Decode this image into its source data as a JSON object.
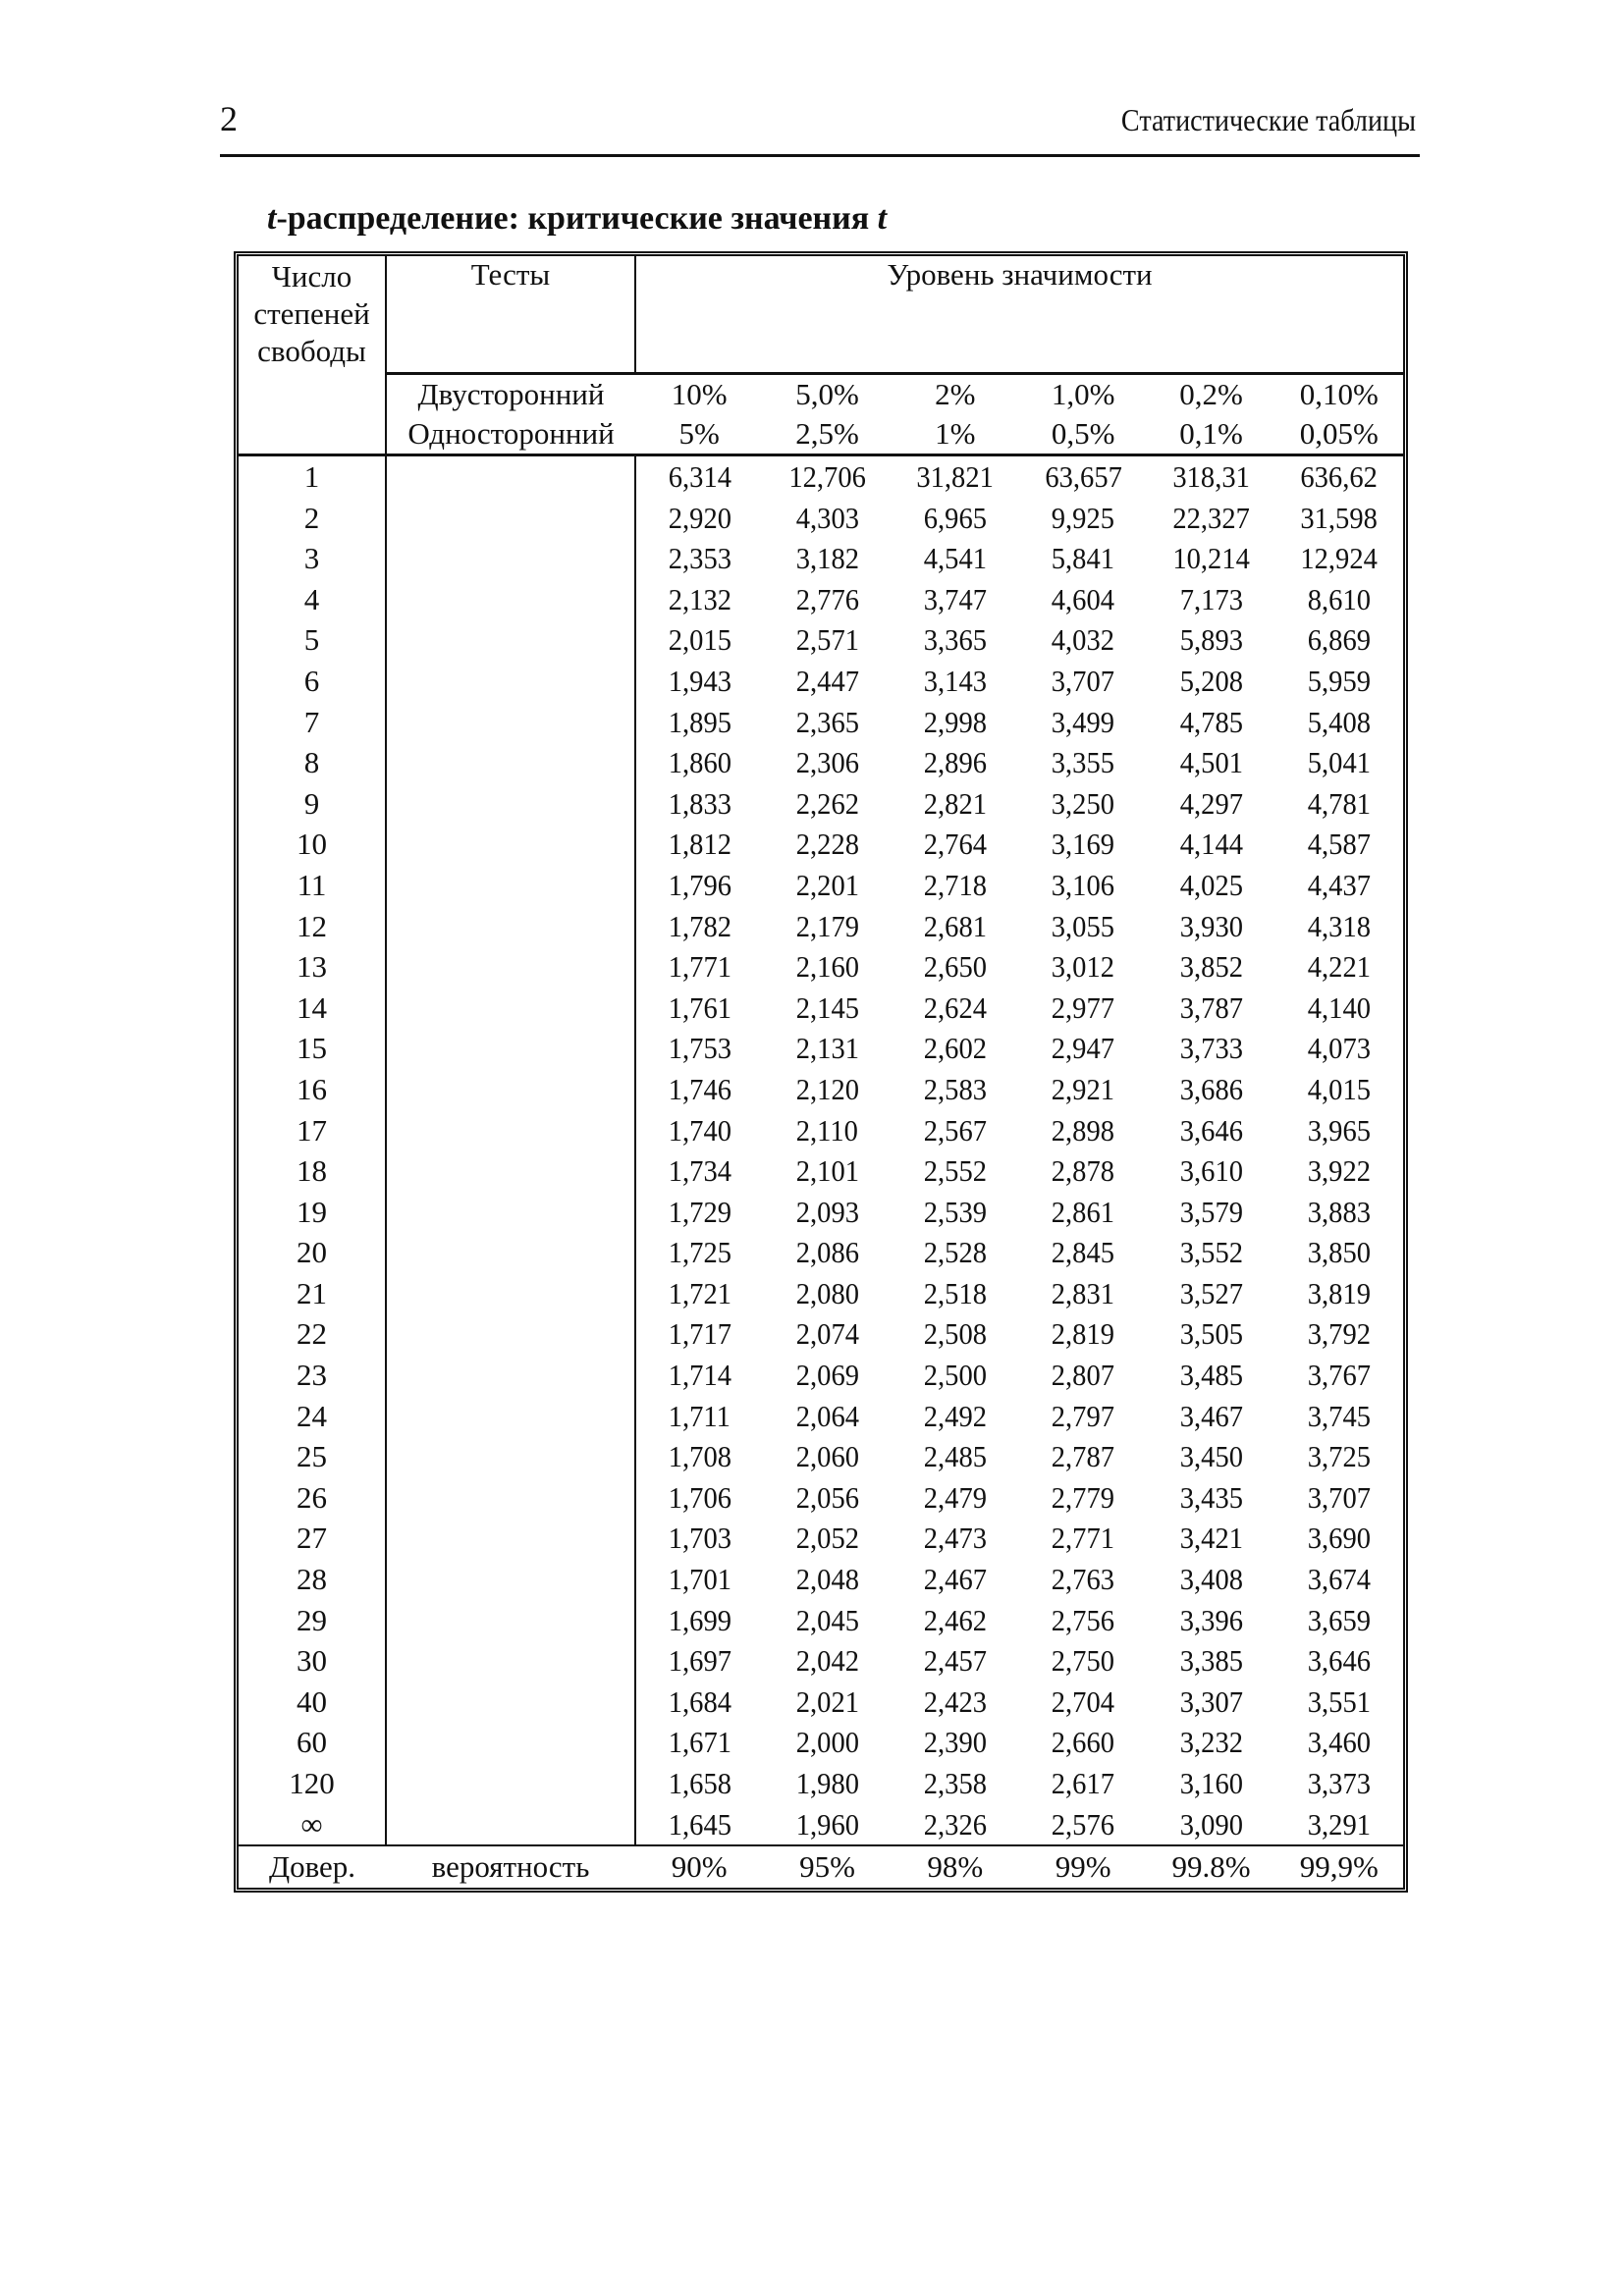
{
  "header": {
    "page_number": "2",
    "running_title": "Статистические таблицы"
  },
  "title": {
    "italic_t": "t",
    "text": "-распределение: критические значения ",
    "italic_t_end": "t"
  },
  "table": {
    "col_df": [
      "Число",
      "степеней",
      "свободы"
    ],
    "col_tests": "Тесты",
    "col_level": "Уровень значимости",
    "two_sided_label": "Двусторонний",
    "two_sided": [
      "10%",
      "5,0%",
      "2%",
      "1,0%",
      "0,2%",
      "0,10%"
    ],
    "one_sided_label": "Односторонний",
    "one_sided": [
      "5%",
      "2,5%",
      "1%",
      "0,5%",
      "0,1%",
      "0,05%"
    ],
    "rows": [
      {
        "df": "1",
        "v": [
          "6,314",
          "12,706",
          "31,821",
          "63,657",
          "318,31",
          "636,62"
        ]
      },
      {
        "df": "2",
        "v": [
          "2,920",
          "4,303",
          "6,965",
          "9,925",
          "22,327",
          "31,598"
        ]
      },
      {
        "df": "3",
        "v": [
          "2,353",
          "3,182",
          "4,541",
          "5,841",
          "10,214",
          "12,924"
        ]
      },
      {
        "df": "4",
        "v": [
          "2,132",
          "2,776",
          "3,747",
          "4,604",
          "7,173",
          "8,610"
        ]
      },
      {
        "df": "5",
        "v": [
          "2,015",
          "2,571",
          "3,365",
          "4,032",
          "5,893",
          "6,869"
        ]
      },
      {
        "df": "6",
        "v": [
          "1,943",
          "2,447",
          "3,143",
          "3,707",
          "5,208",
          "5,959"
        ]
      },
      {
        "df": "7",
        "v": [
          "1,895",
          "2,365",
          "2,998",
          "3,499",
          "4,785",
          "5,408"
        ]
      },
      {
        "df": "8",
        "v": [
          "1,860",
          "2,306",
          "2,896",
          "3,355",
          "4,501",
          "5,041"
        ]
      },
      {
        "df": "9",
        "v": [
          "1,833",
          "2,262",
          "2,821",
          "3,250",
          "4,297",
          "4,781"
        ]
      },
      {
        "df": "10",
        "v": [
          "1,812",
          "2,228",
          "2,764",
          "3,169",
          "4,144",
          "4,587"
        ]
      },
      {
        "df": "11",
        "v": [
          "1,796",
          "2,201",
          "2,718",
          "3,106",
          "4,025",
          "4,437"
        ]
      },
      {
        "df": "12",
        "v": [
          "1,782",
          "2,179",
          "2,681",
          "3,055",
          "3,930",
          "4,318"
        ]
      },
      {
        "df": "13",
        "v": [
          "1,771",
          "2,160",
          "2,650",
          "3,012",
          "3,852",
          "4,221"
        ]
      },
      {
        "df": "14",
        "v": [
          "1,761",
          "2,145",
          "2,624",
          "2,977",
          "3,787",
          "4,140"
        ]
      },
      {
        "df": "15",
        "v": [
          "1,753",
          "2,131",
          "2,602",
          "2,947",
          "3,733",
          "4,073"
        ]
      },
      {
        "df": "16",
        "v": [
          "1,746",
          "2,120",
          "2,583",
          "2,921",
          "3,686",
          "4,015"
        ]
      },
      {
        "df": "17",
        "v": [
          "1,740",
          "2,110",
          "2,567",
          "2,898",
          "3,646",
          "3,965"
        ]
      },
      {
        "df": "18",
        "v": [
          "1,734",
          "2,101",
          "2,552",
          "2,878",
          "3,610",
          "3,922"
        ]
      },
      {
        "df": "19",
        "v": [
          "1,729",
          "2,093",
          "2,539",
          "2,861",
          "3,579",
          "3,883"
        ]
      },
      {
        "df": "20",
        "v": [
          "1,725",
          "2,086",
          "2,528",
          "2,845",
          "3,552",
          "3,850"
        ]
      },
      {
        "df": "21",
        "v": [
          "1,721",
          "2,080",
          "2,518",
          "2,831",
          "3,527",
          "3,819"
        ]
      },
      {
        "df": "22",
        "v": [
          "1,717",
          "2,074",
          "2,508",
          "2,819",
          "3,505",
          "3,792"
        ]
      },
      {
        "df": "23",
        "v": [
          "1,714",
          "2,069",
          "2,500",
          "2,807",
          "3,485",
          "3,767"
        ]
      },
      {
        "df": "24",
        "v": [
          "1,711",
          "2,064",
          "2,492",
          "2,797",
          "3,467",
          "3,745"
        ]
      },
      {
        "df": "25",
        "v": [
          "1,708",
          "2,060",
          "2,485",
          "2,787",
          "3,450",
          "3,725"
        ]
      },
      {
        "df": "26",
        "v": [
          "1,706",
          "2,056",
          "2,479",
          "2,779",
          "3,435",
          "3,707"
        ]
      },
      {
        "df": "27",
        "v": [
          "1,703",
          "2,052",
          "2,473",
          "2,771",
          "3,421",
          "3,690"
        ]
      },
      {
        "df": "28",
        "v": [
          "1,701",
          "2,048",
          "2,467",
          "2,763",
          "3,408",
          "3,674"
        ]
      },
      {
        "df": "29",
        "v": [
          "1,699",
          "2,045",
          "2,462",
          "2,756",
          "3,396",
          "3,659"
        ]
      },
      {
        "df": "30",
        "v": [
          "1,697",
          "2,042",
          "2,457",
          "2,750",
          "3,385",
          "3,646"
        ]
      },
      {
        "df": "40",
        "v": [
          "1,684",
          "2,021",
          "2,423",
          "2,704",
          "3,307",
          "3,551"
        ]
      },
      {
        "df": "60",
        "v": [
          "1,671",
          "2,000",
          "2,390",
          "2,660",
          "3,232",
          "3,460"
        ]
      },
      {
        "df": "120",
        "v": [
          "1,658",
          "1,980",
          "2,358",
          "2,617",
          "3,160",
          "3,373"
        ]
      },
      {
        "df": "∞",
        "v": [
          "1,645",
          "1,960",
          "2,326",
          "2,576",
          "3,090",
          "3,291"
        ]
      }
    ],
    "footer_label_1": "Довер.",
    "footer_label_2": "вероятность",
    "confidence": [
      "90%",
      "95%",
      "98%",
      "99%",
      "99.8%",
      "99,9%"
    ]
  }
}
